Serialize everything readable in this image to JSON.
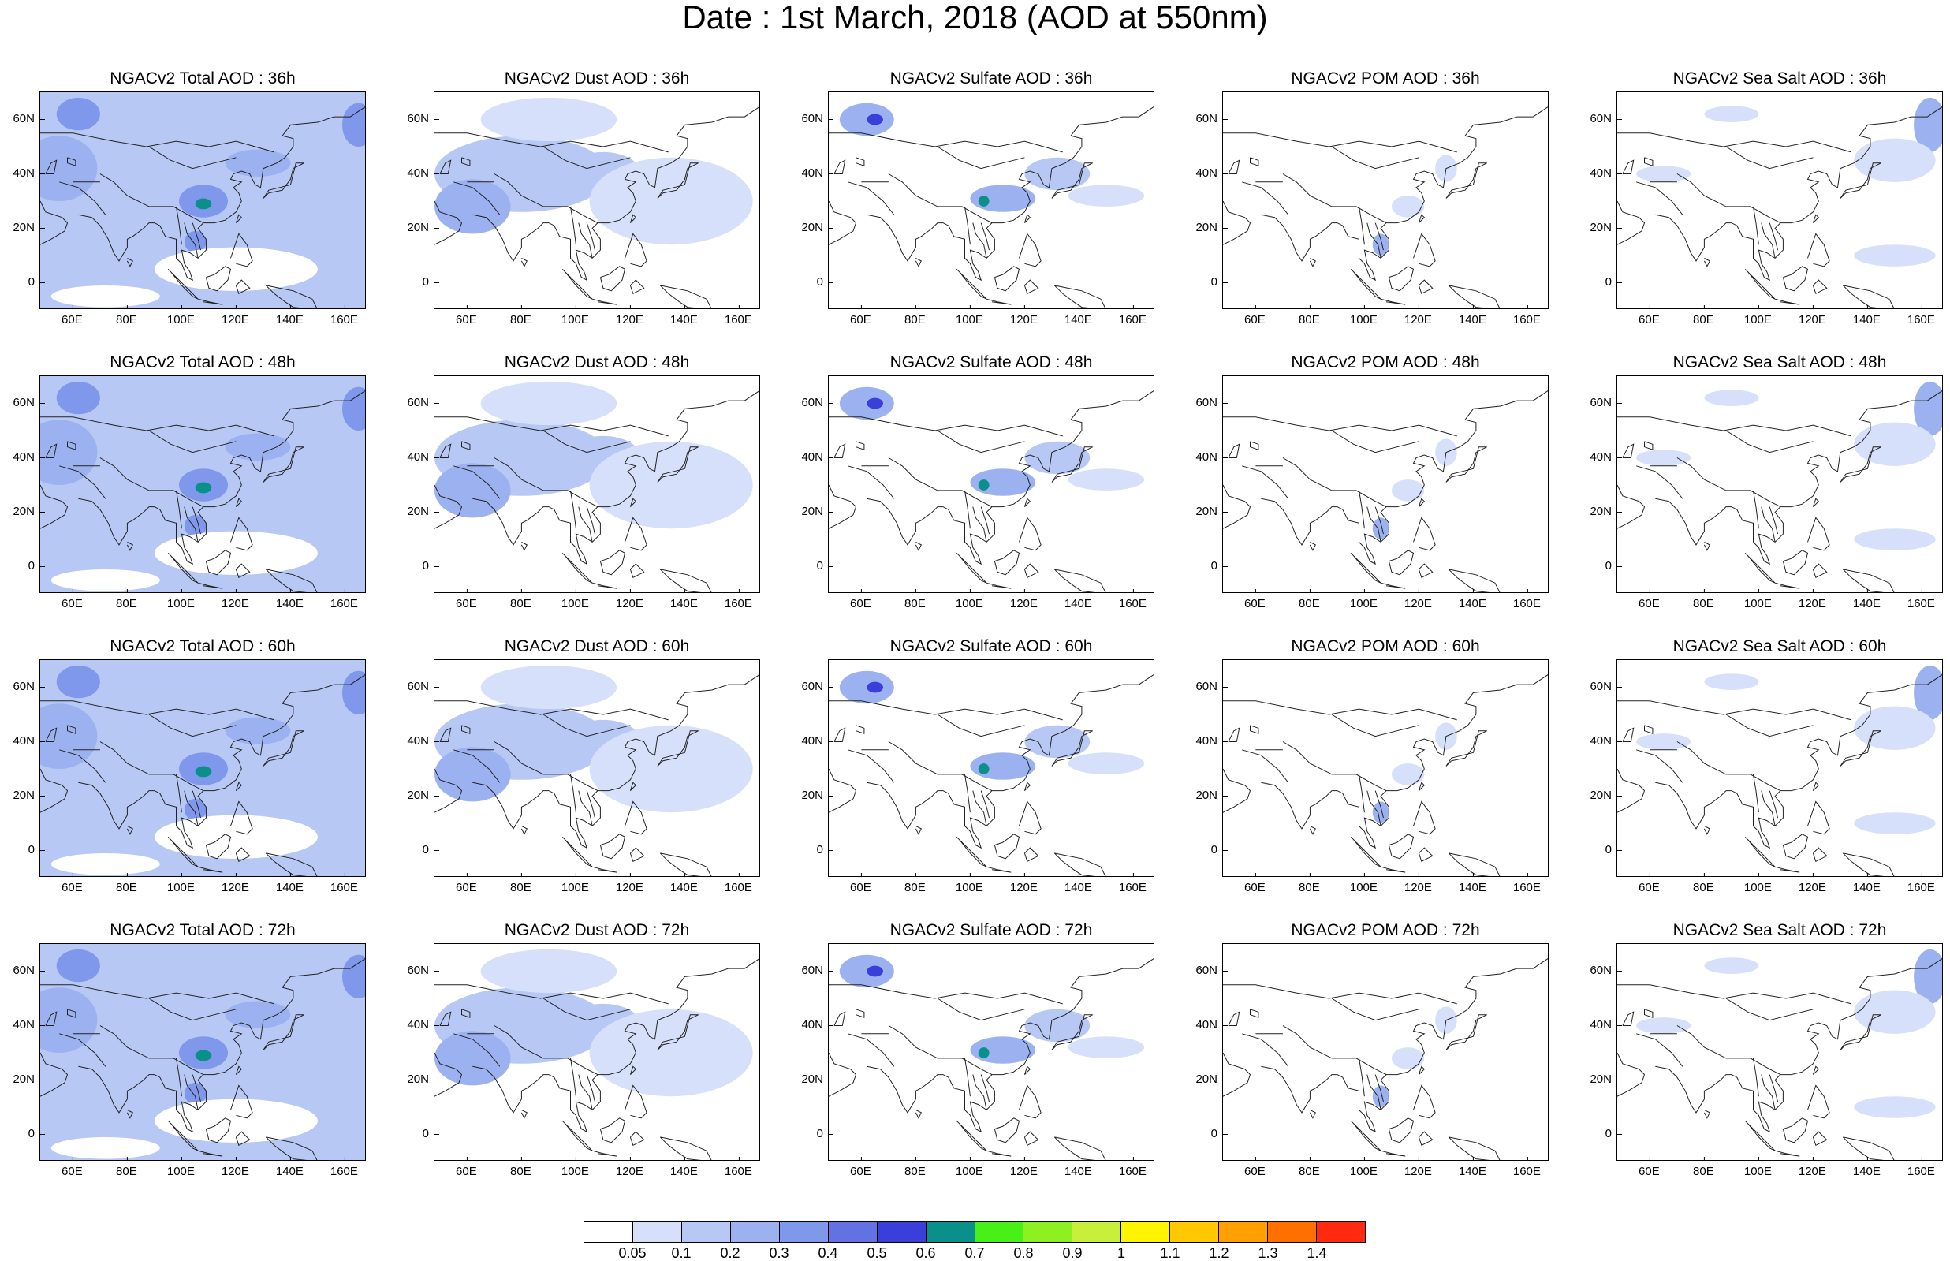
{
  "title": "Date : 1st March, 2018 (AOD at 550nm)",
  "panel_titles": [
    [
      "NGACv2 Total AOD : 36h",
      "NGACv2 Dust AOD : 36h",
      "NGACv2 Sulfate AOD : 36h",
      "NGACv2 POM AOD : 36h",
      "NGACv2 Sea Salt AOD : 36h"
    ],
    [
      "NGACv2 Total AOD : 48h",
      "NGACv2 Dust AOD : 48h",
      "NGACv2 Sulfate AOD : 48h",
      "NGACv2 POM AOD : 48h",
      "NGACv2 Sea Salt AOD : 48h"
    ],
    [
      "NGACv2 Total AOD : 60h",
      "NGACv2 Dust AOD : 60h",
      "NGACv2 Sulfate AOD : 60h",
      "NGACv2 POM AOD : 60h",
      "NGACv2 Sea Salt AOD : 60h"
    ],
    [
      "NGACv2 Total AOD : 72h",
      "NGACv2 Dust AOD : 72h",
      "NGACv2 Sulfate AOD : 72h",
      "NGACv2 POM AOD : 72h",
      "NGACv2 Sea Salt  AOD : 72h"
    ]
  ],
  "map_extent": {
    "lon": [
      48,
      168
    ],
    "lat": [
      -10,
      70
    ]
  },
  "lon_ticks": [
    {
      "value": 60,
      "label": "60E"
    },
    {
      "value": 80,
      "label": "80E"
    },
    {
      "value": 100,
      "label": "100E"
    },
    {
      "value": 120,
      "label": "120E"
    },
    {
      "value": 140,
      "label": "140E"
    },
    {
      "value": 160,
      "label": "160E"
    }
  ],
  "lat_ticks": [
    {
      "value": 60,
      "label": "60N"
    },
    {
      "value": 40,
      "label": "40N"
    },
    {
      "value": 20,
      "label": "20N"
    },
    {
      "value": 0,
      "label": "0"
    }
  ],
  "colorbar": {
    "labels": [
      "0.05",
      "0.1",
      "0.2",
      "0.3",
      "0.4",
      "0.5",
      "0.6",
      "0.7",
      "0.8",
      "0.9",
      "1",
      "1.1",
      "1.2",
      "1.3",
      "1.4"
    ],
    "colors": [
      "#ffffff",
      "#d6e0fa",
      "#b7c8f5",
      "#9cb2f0",
      "#8098eb",
      "#6272e2",
      "#3a3fd9",
      "#0a8f8a",
      "#48f018",
      "#8ef022",
      "#c8f03a",
      "#fff500",
      "#ffc800",
      "#ffa000",
      "#ff7000",
      "#ff2a10"
    ]
  },
  "species_order": [
    "total",
    "dust",
    "sulfate",
    "pom",
    "seasalt"
  ],
  "hours": [
    "36h",
    "48h",
    "60h",
    "72h"
  ],
  "fields": {
    "total": {
      "background": 2,
      "blobs": [
        {
          "lon": 55,
          "lat": 42,
          "rx": 14,
          "ry": 12,
          "level": 3
        },
        {
          "lon": 62,
          "lat": 62,
          "rx": 8,
          "ry": 6,
          "level": 4
        },
        {
          "lon": 108,
          "lat": 30,
          "rx": 9,
          "ry": 6,
          "level": 4
        },
        {
          "lon": 108,
          "lat": 29,
          "rx": 3,
          "ry": 2,
          "level": 7
        },
        {
          "lon": 128,
          "lat": 44,
          "rx": 12,
          "ry": 5,
          "level": 3
        },
        {
          "lon": 105,
          "lat": 15,
          "rx": 4,
          "ry": 4,
          "level": 4
        },
        {
          "lon": 165,
          "lat": 58,
          "rx": 6,
          "ry": 8,
          "level": 4
        },
        {
          "lon": 120,
          "lat": 5,
          "rx": 30,
          "ry": 8,
          "level": 0
        },
        {
          "lon": 72,
          "lat": -5,
          "rx": 20,
          "ry": 4,
          "level": 0
        }
      ]
    },
    "dust": {
      "background": 0,
      "blobs": [
        {
          "lon": 80,
          "lat": 40,
          "rx": 32,
          "ry": 14,
          "level": 2
        },
        {
          "lon": 62,
          "lat": 28,
          "rx": 14,
          "ry": 10,
          "level": 3
        },
        {
          "lon": 110,
          "lat": 40,
          "rx": 14,
          "ry": 8,
          "level": 2
        },
        {
          "lon": 135,
          "lat": 30,
          "rx": 30,
          "ry": 16,
          "level": 1
        },
        {
          "lon": 90,
          "lat": 60,
          "rx": 25,
          "ry": 8,
          "level": 1
        }
      ]
    },
    "sulfate": {
      "background": 0,
      "blobs": [
        {
          "lon": 62,
          "lat": 60,
          "rx": 10,
          "ry": 6,
          "level": 3
        },
        {
          "lon": 65,
          "lat": 60,
          "rx": 3,
          "ry": 2,
          "level": 6
        },
        {
          "lon": 112,
          "lat": 31,
          "rx": 12,
          "ry": 5,
          "level": 3
        },
        {
          "lon": 105,
          "lat": 30,
          "rx": 2,
          "ry": 2,
          "level": 7
        },
        {
          "lon": 132,
          "lat": 40,
          "rx": 12,
          "ry": 6,
          "level": 2
        },
        {
          "lon": 150,
          "lat": 32,
          "rx": 14,
          "ry": 4,
          "level": 1
        }
      ]
    },
    "pom": {
      "background": 0,
      "blobs": [
        {
          "lon": 106,
          "lat": 14,
          "rx": 3,
          "ry": 4,
          "level": 3
        },
        {
          "lon": 116,
          "lat": 28,
          "rx": 6,
          "ry": 4,
          "level": 1
        },
        {
          "lon": 130,
          "lat": 42,
          "rx": 4,
          "ry": 5,
          "level": 1
        }
      ]
    },
    "seasalt": {
      "background": 0,
      "blobs": [
        {
          "lon": 163,
          "lat": 58,
          "rx": 6,
          "ry": 10,
          "level": 3
        },
        {
          "lon": 150,
          "lat": 45,
          "rx": 15,
          "ry": 8,
          "level": 1
        },
        {
          "lon": 150,
          "lat": 10,
          "rx": 15,
          "ry": 4,
          "level": 1
        },
        {
          "lon": 90,
          "lat": 62,
          "rx": 10,
          "ry": 3,
          "level": 1
        },
        {
          "lon": 65,
          "lat": 40,
          "rx": 10,
          "ry": 3,
          "level": 1
        }
      ]
    }
  }
}
